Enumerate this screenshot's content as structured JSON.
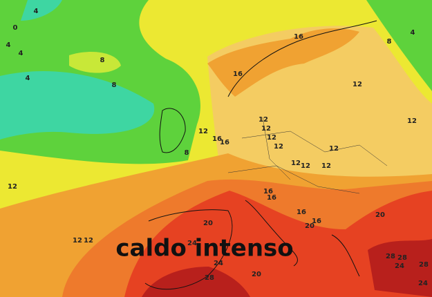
{
  "title": "caldo intenso",
  "isotherm_labels": [
    0,
    4,
    4,
    4,
    4,
    8,
    8,
    4,
    8,
    16,
    16,
    12,
    12,
    12,
    16,
    16,
    8,
    12,
    12,
    12,
    12,
    12,
    12,
    12,
    12,
    12,
    16,
    16,
    16,
    16,
    20,
    20,
    20,
    24,
    24,
    12,
    12,
    20,
    28,
    28,
    28,
    24,
    28,
    24
  ]
}
